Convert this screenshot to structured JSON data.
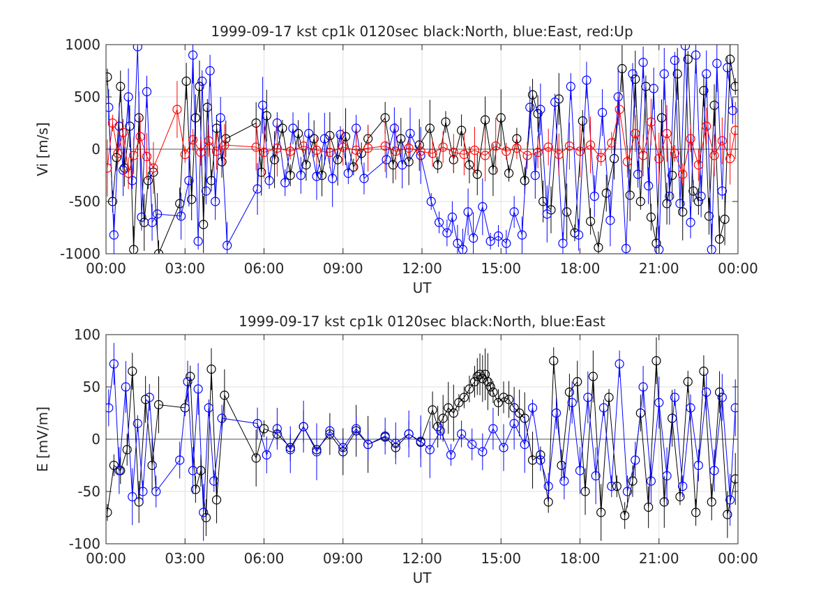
{
  "chart_data": [
    {
      "type": "line",
      "title": "1999-09-17 kst cp1k 0120sec black:North, blue:East, red:Up",
      "xlabel": "UT",
      "ylabel": "Vi [m/s]",
      "xlim": [
        0,
        24
      ],
      "ylim": [
        -1000,
        1000
      ],
      "xticks": [
        0,
        3,
        6,
        9,
        12,
        15,
        18,
        21,
        24
      ],
      "xticklabels": [
        "00:00",
        "03:00",
        "06:00",
        "09:00",
        "12:00",
        "15:00",
        "18:00",
        "21:00",
        "00:00"
      ],
      "yticks": [
        -1000,
        -500,
        0,
        500,
        1000
      ],
      "yticklabels": [
        "-1000",
        "-500",
        "0",
        "500",
        "1000"
      ],
      "grid": true,
      "legend": "none",
      "marker": "open-circle",
      "error_bars": true,
      "colors": {
        "North": "#000000",
        "East": "#0000ff",
        "Up": "#ff0000"
      },
      "series": [
        {
          "color": "#000000",
          "x": [
            0.05,
            0.25,
            0.4,
            0.55,
            0.7,
            0.9,
            1.05,
            1.25,
            1.45,
            1.6,
            1.8,
            2.0,
            2.8,
            3.05,
            3.25,
            3.4,
            3.55,
            3.7,
            3.85,
            4.0,
            4.2,
            4.4,
            4.55,
            5.7,
            5.9,
            6.1,
            6.4,
            6.7,
            7.0,
            7.3,
            7.6,
            7.9,
            8.2,
            8.5,
            8.8,
            9.1,
            9.4,
            9.7,
            9.95,
            10.6,
            10.9,
            11.2,
            11.5,
            11.9,
            12.3,
            12.6,
            12.9,
            13.2,
            13.5,
            13.8,
            14.1,
            14.4,
            14.7,
            15.0,
            15.3,
            15.6,
            15.9,
            16.2,
            16.4,
            16.6,
            16.9,
            17.2,
            17.5,
            17.8,
            18.1,
            18.4,
            18.7,
            19.0,
            19.3,
            19.6,
            19.9,
            20.1,
            20.3,
            20.5,
            20.7,
            20.9,
            21.1,
            21.3,
            21.5,
            21.7,
            21.9,
            22.1,
            22.3,
            22.5,
            22.7,
            22.9,
            23.1,
            23.3,
            23.5,
            23.7,
            23.9
          ],
          "y": [
            690,
            -500,
            -80,
            600,
            -180,
            220,
            -960,
            300,
            -700,
            -300,
            -220,
            -1000,
            -520,
            650,
            -480,
            300,
            600,
            -720,
            400,
            -300,
            200,
            -120,
            100,
            250,
            -220,
            320,
            -100,
            200,
            -250,
            150,
            -150,
            100,
            -250,
            130,
            -100,
            120,
            -170,
            -40,
            100,
            300,
            -150,
            100,
            -120,
            40,
            200,
            -150,
            260,
            -100,
            180,
            -150,
            -240,
            280,
            -200,
            300,
            -230,
            100,
            -300,
            520,
            340,
            -500,
            -580,
            480,
            -600,
            -800,
            270,
            -690,
            -940,
            -420,
            -90,
            770,
            -440,
            670,
            -500,
            600,
            -650,
            -900,
            300,
            -520,
            -250,
            720,
            -600,
            860,
            -400,
            -500,
            560,
            -640,
            420,
            -860,
            -670,
            860,
            600
          ]
        },
        {
          "color": "#0000ff",
          "x": [
            0.1,
            0.3,
            0.5,
            0.65,
            0.85,
            1.0,
            1.2,
            1.35,
            1.55,
            1.75,
            1.95,
            2.85,
            3.15,
            3.3,
            3.5,
            3.65,
            3.8,
            3.95,
            4.15,
            4.35,
            4.6,
            5.75,
            5.95,
            6.2,
            6.5,
            6.8,
            7.1,
            7.4,
            7.7,
            8.0,
            8.3,
            8.6,
            8.9,
            9.2,
            9.5,
            9.8,
            10.65,
            10.95,
            11.25,
            11.55,
            11.95,
            12.35,
            12.65,
            12.95,
            13.15,
            13.35,
            13.55,
            13.75,
            13.95,
            14.3,
            14.6,
            14.9,
            15.2,
            15.5,
            15.8,
            16.1,
            16.3,
            16.5,
            16.75,
            17.05,
            17.35,
            17.65,
            17.95,
            18.25,
            18.55,
            18.85,
            19.15,
            19.45,
            19.75,
            20.0,
            20.2,
            20.4,
            20.6,
            20.8,
            21.0,
            21.2,
            21.4,
            21.6,
            21.8,
            22.0,
            22.2,
            22.4,
            22.6,
            22.8,
            23.0,
            23.2,
            23.4,
            23.6,
            23.8
          ],
          "y": [
            400,
            -820,
            220,
            -200,
            500,
            -300,
            980,
            -650,
            550,
            -700,
            -620,
            -640,
            -300,
            900,
            -880,
            650,
            -400,
            750,
            -500,
            300,
            -920,
            -380,
            420,
            -300,
            250,
            -320,
            200,
            -250,
            150,
            -260,
            100,
            -280,
            140,
            -230,
            200,
            -280,
            -100,
            200,
            -150,
            150,
            -60,
            -500,
            -700,
            -800,
            -650,
            -900,
            -960,
            -600,
            -850,
            -550,
            -880,
            -830,
            -900,
            -600,
            -820,
            400,
            -250,
            380,
            -620,
            450,
            -900,
            600,
            -820,
            660,
            -450,
            350,
            -680,
            500,
            -950,
            720,
            -240,
            830,
            -350,
            580,
            -960,
            720,
            -450,
            850,
            -520,
            990,
            -700,
            900,
            -450,
            720,
            -960,
            820,
            -400,
            780,
            370
          ]
        },
        {
          "color": "#ff0000",
          "x": [
            0.05,
            0.25,
            0.45,
            0.65,
            0.85,
            1.05,
            1.3,
            1.55,
            1.8,
            2.7,
            3.0,
            3.3,
            3.6,
            3.9,
            4.2,
            4.5,
            5.7,
            6.0,
            6.5,
            7.0,
            7.5,
            8.0,
            8.5,
            9.0,
            9.5,
            9.95,
            10.6,
            11.0,
            11.5,
            11.95,
            12.4,
            12.8,
            13.2,
            13.6,
            14.0,
            14.4,
            14.8,
            15.2,
            15.6,
            16.0,
            16.4,
            16.8,
            17.2,
            17.6,
            18.0,
            18.4,
            18.8,
            19.2,
            19.5,
            19.8,
            20.1,
            20.4,
            20.7,
            21.0,
            21.3,
            21.6,
            21.9,
            22.2,
            22.5,
            22.8,
            23.1,
            23.4,
            23.7,
            23.9
          ],
          "y": [
            -180,
            250,
            -40,
            160,
            -230,
            -60,
            120,
            -70,
            -180,
            380,
            -50,
            90,
            -30,
            80,
            -20,
            40,
            20,
            -30,
            10,
            -20,
            30,
            -10,
            -30,
            20,
            -10,
            10,
            30,
            -20,
            10,
            -20,
            -40,
            20,
            -30,
            -50,
            -10,
            -60,
            30,
            -20,
            10,
            -60,
            -30,
            20,
            -50,
            30,
            -20,
            40,
            -80,
            60,
            380,
            -120,
            150,
            -60,
            260,
            -90,
            150,
            -40,
            -240,
            100,
            -150,
            220,
            -60,
            80,
            -90,
            180
          ]
        }
      ]
    },
    {
      "type": "line",
      "title": "1999-09-17 kst cp1k 0120sec black:North, blue:East",
      "xlabel": "UT",
      "ylabel": "E [mV/m]",
      "xlim": [
        0,
        24
      ],
      "ylim": [
        -100,
        100
      ],
      "xticks": [
        0,
        3,
        6,
        9,
        12,
        15,
        18,
        21,
        24
      ],
      "xticklabels": [
        "00:00",
        "03:00",
        "06:00",
        "09:00",
        "12:00",
        "15:00",
        "18:00",
        "21:00",
        "00:00"
      ],
      "yticks": [
        -100,
        -50,
        0,
        50,
        100
      ],
      "yticklabels": [
        "-100",
        "-50",
        "0",
        "50",
        "100"
      ],
      "grid": true,
      "legend": "none",
      "marker": "open-circle",
      "error_bars": true,
      "colors": {
        "North": "#000000",
        "East": "#0000ff"
      },
      "series": [
        {
          "color": "#000000",
          "x": [
            0.05,
            0.3,
            0.55,
            0.8,
            1.0,
            1.25,
            1.5,
            1.75,
            2.0,
            3.0,
            3.2,
            3.4,
            3.6,
            3.8,
            4.0,
            4.2,
            4.5,
            5.7,
            6.0,
            6.5,
            7.0,
            7.5,
            8.0,
            8.5,
            9.0,
            9.5,
            9.95,
            10.6,
            11.0,
            11.5,
            11.95,
            12.4,
            12.6,
            12.8,
            13.0,
            13.2,
            13.4,
            13.6,
            13.8,
            14.0,
            14.1,
            14.2,
            14.3,
            14.4,
            14.5,
            14.6,
            14.7,
            14.9,
            15.1,
            15.3,
            15.5,
            15.7,
            15.9,
            16.2,
            16.5,
            16.8,
            17.0,
            17.3,
            17.6,
            17.9,
            18.2,
            18.5,
            18.8,
            19.1,
            19.4,
            19.7,
            20.0,
            20.3,
            20.6,
            20.9,
            21.2,
            21.5,
            21.8,
            22.1,
            22.4,
            22.7,
            23.0,
            23.3,
            23.6,
            23.9
          ],
          "y": [
            -70,
            -25,
            -30,
            -10,
            65,
            -60,
            38,
            -25,
            33,
            30,
            60,
            -48,
            -30,
            -75,
            67,
            -58,
            42,
            -18,
            10,
            5,
            -8,
            12,
            -10,
            5,
            -12,
            8,
            -5,
            2,
            -8,
            5,
            -3,
            28,
            12,
            20,
            30,
            25,
            35,
            40,
            48,
            55,
            60,
            62,
            58,
            62,
            55,
            50,
            45,
            35,
            40,
            38,
            30,
            25,
            20,
            -20,
            -15,
            -60,
            75,
            -25,
            45,
            55,
            -50,
            60,
            -70,
            40,
            -45,
            -73,
            -40,
            25,
            -65,
            75,
            -60,
            20,
            -55,
            55,
            -70,
            65,
            -60,
            45,
            -72,
            -38
          ]
        },
        {
          "color": "#0000ff",
          "x": [
            0.1,
            0.3,
            0.5,
            0.75,
            1.0,
            1.2,
            1.4,
            1.65,
            1.9,
            2.8,
            3.1,
            3.3,
            3.5,
            3.7,
            3.9,
            4.1,
            4.4,
            5.75,
            6.1,
            6.5,
            7.0,
            7.5,
            8.0,
            8.5,
            9.0,
            9.5,
            9.95,
            10.6,
            11.0,
            11.5,
            11.95,
            12.3,
            12.7,
            13.1,
            13.5,
            13.9,
            14.3,
            14.7,
            15.1,
            15.5,
            15.9,
            16.2,
            16.5,
            16.8,
            17.1,
            17.4,
            17.7,
            18.0,
            18.3,
            18.6,
            18.9,
            19.2,
            19.5,
            19.8,
            20.1,
            20.4,
            20.7,
            21.0,
            21.3,
            21.6,
            21.9,
            22.2,
            22.5,
            22.8,
            23.1,
            23.4,
            23.7,
            23.9
          ],
          "y": [
            30,
            72,
            -30,
            50,
            -55,
            15,
            -50,
            40,
            -50,
            -20,
            55,
            -30,
            48,
            -70,
            30,
            -40,
            20,
            15,
            -15,
            10,
            -10,
            12,
            -12,
            8,
            -8,
            10,
            -5,
            3,
            -4,
            5,
            -2,
            -10,
            8,
            -15,
            5,
            -5,
            -12,
            10,
            -8,
            15,
            -5,
            30,
            -20,
            -45,
            25,
            -40,
            35,
            -30,
            40,
            -35,
            30,
            -45,
            72,
            -50,
            -20,
            50,
            -40,
            35,
            -35,
            40,
            -45,
            30,
            -25,
            45,
            -30,
            40,
            -58,
            30
          ]
        }
      ]
    }
  ]
}
